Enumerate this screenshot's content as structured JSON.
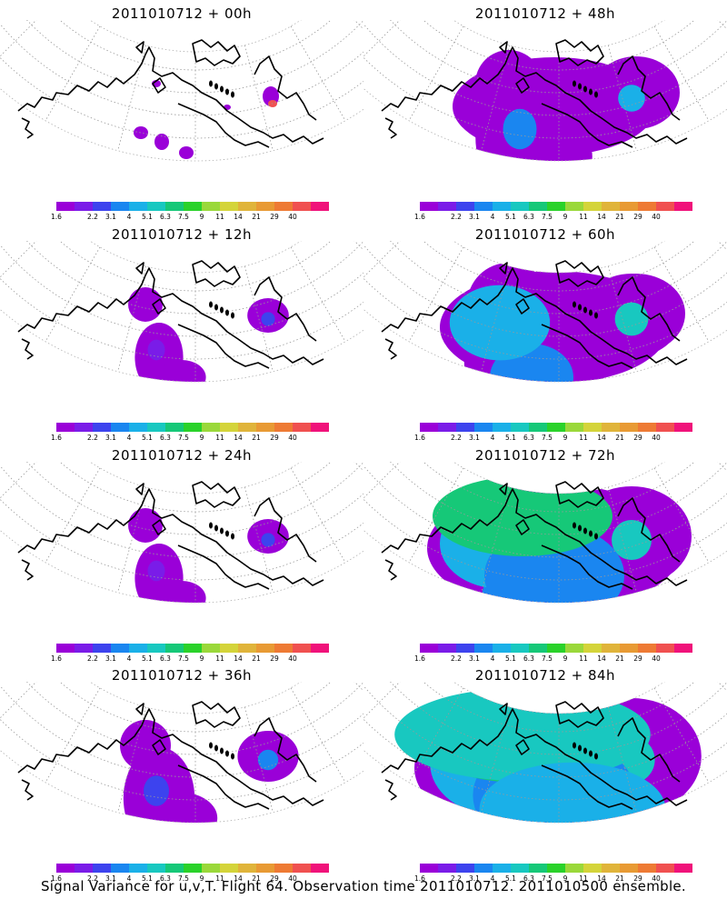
{
  "panels": [
    {
      "title": "2011010712 + 00h",
      "level": 0
    },
    {
      "title": "2011010712 + 48h",
      "level": 3
    },
    {
      "title": "2011010712 + 12h",
      "level": 1
    },
    {
      "title": "2011010712 + 60h",
      "level": 4
    },
    {
      "title": "2011010712 + 24h",
      "level": 1
    },
    {
      "title": "2011010712 + 72h",
      "level": 5
    },
    {
      "title": "2011010712 + 36h",
      "level": 2
    },
    {
      "title": "2011010712 + 84h",
      "level": 6
    }
  ],
  "colorbar": {
    "colors": [
      "#9a00d8",
      "#7a1ce8",
      "#3d43ee",
      "#1a86f0",
      "#1ab0e8",
      "#18c8c0",
      "#16c878",
      "#2ad22a",
      "#9ad83a",
      "#d4d43a",
      "#e0b43a",
      "#e89a34",
      "#ee7a34",
      "#f05050",
      "#f0127a"
    ],
    "labels": [
      "1.6",
      "2.2",
      "3.1",
      "4",
      "5.1",
      "6.3",
      "7.5",
      "9",
      "11",
      "14",
      "21",
      "29",
      "40"
    ]
  },
  "footer": "Signal Variance for u,v,T. Flight 64. Observation time 2011010712. 2011010500 ensemble."
}
